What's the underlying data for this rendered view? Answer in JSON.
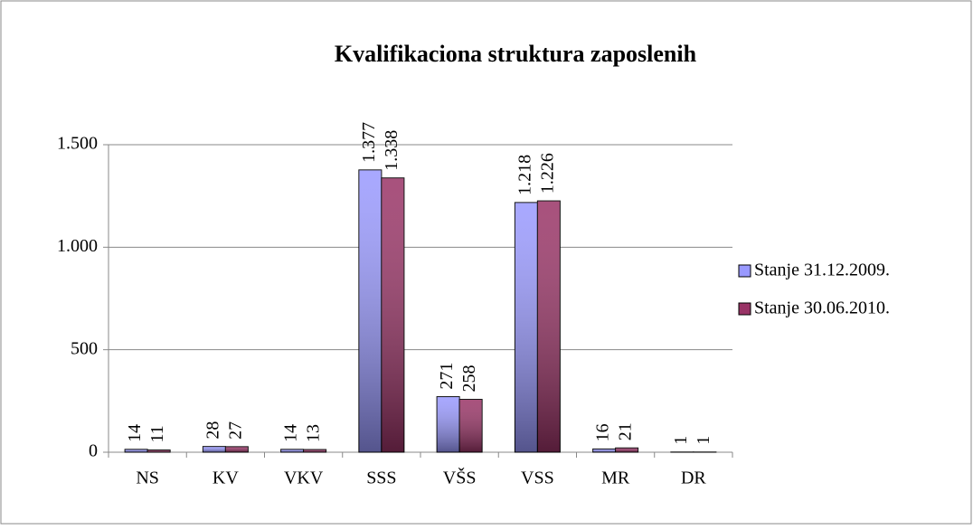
{
  "chart_data": {
    "type": "bar",
    "title": "Kvalifikaciona struktura zaposlenih",
    "categories": [
      "NS",
      "KV",
      "VKV",
      "SSS",
      "VŠS",
      "VSS",
      "MR",
      "DR"
    ],
    "series": [
      {
        "name": "Stanje 31.12.2009.",
        "color": "#9999ff",
        "values": [
          14,
          28,
          14,
          1377,
          271,
          1218,
          16,
          1
        ],
        "value_labels": [
          "14",
          "28",
          "14",
          "1.377",
          "271",
          "1.218",
          "16",
          "1"
        ]
      },
      {
        "name": "Stanje 30.06.2010.",
        "color": "#993366",
        "values": [
          11,
          27,
          13,
          1338,
          258,
          1226,
          21,
          1
        ],
        "value_labels": [
          "11",
          "27",
          "13",
          "1.338",
          "258",
          "1.226",
          "21",
          "1"
        ]
      }
    ],
    "ylim": [
      0,
      1500
    ],
    "yticks": [
      0,
      500,
      {
        "value": 1000,
        "label": "1.000"
      },
      {
        "value": 1500,
        "label": "1.500"
      }
    ],
    "grid": true,
    "legend": "right"
  }
}
